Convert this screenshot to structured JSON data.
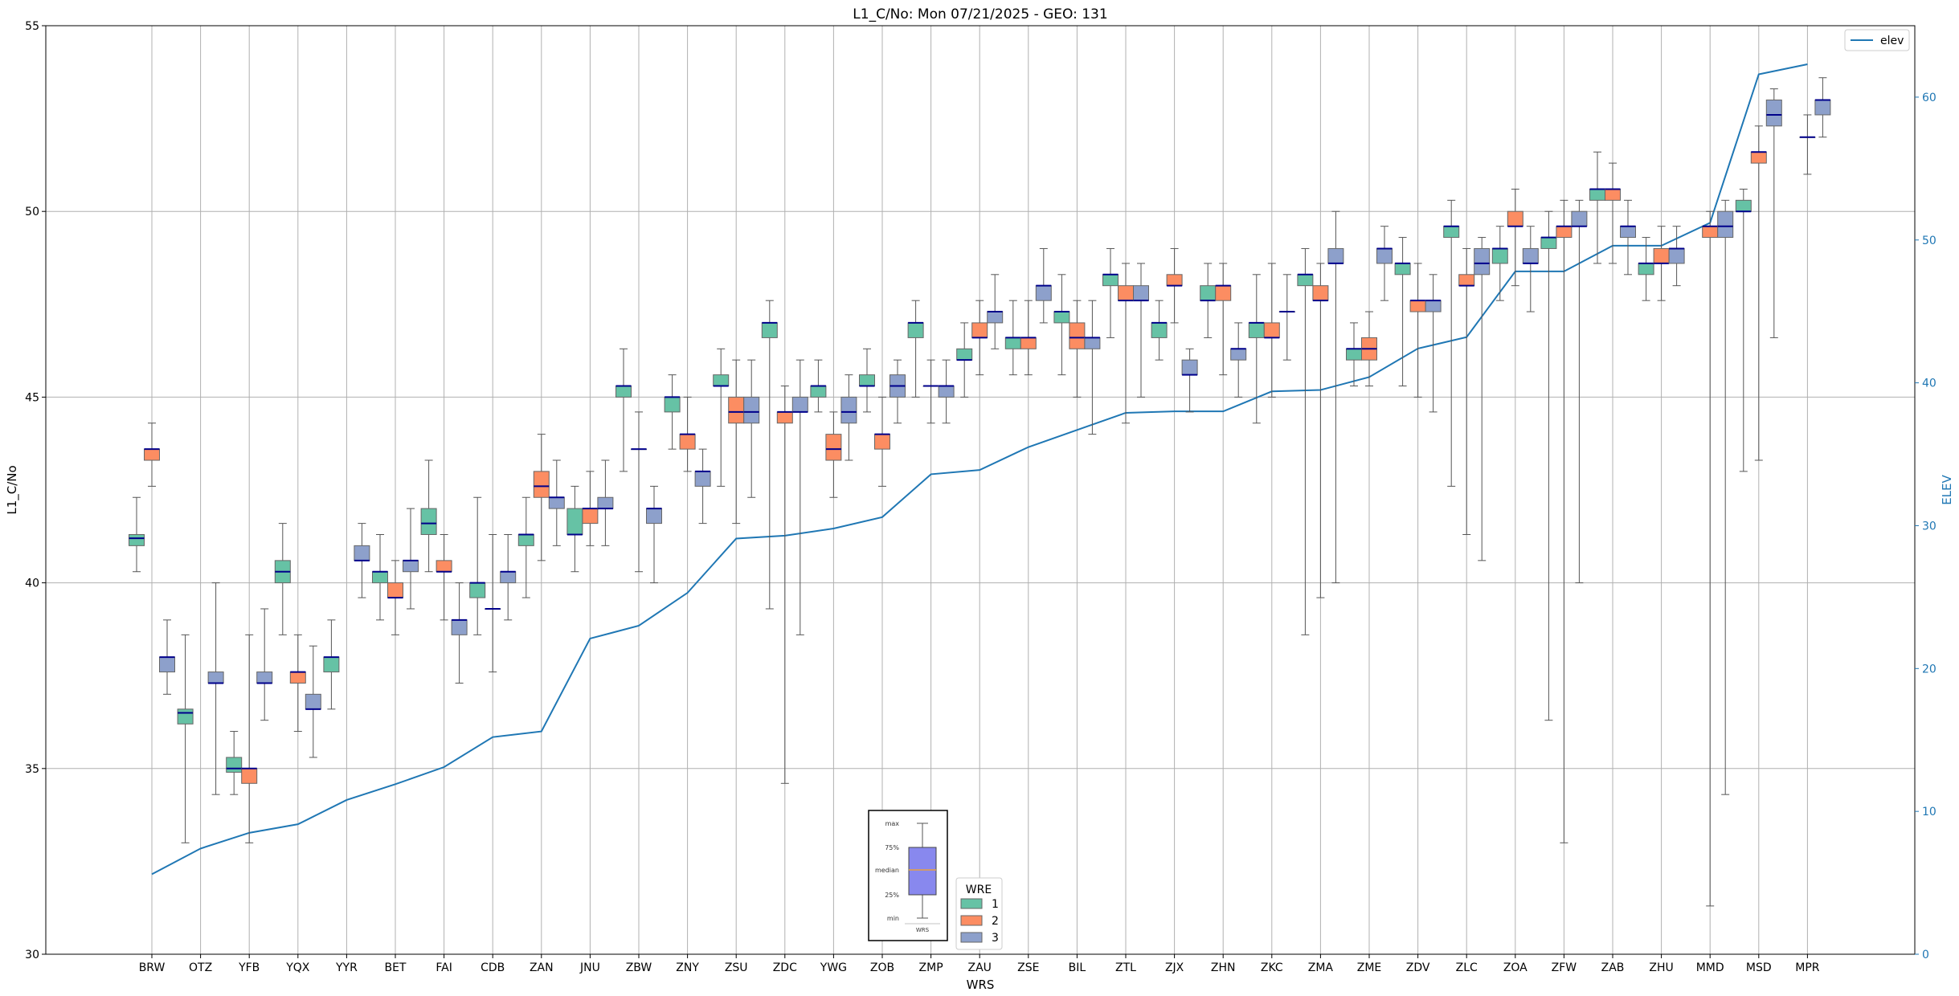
{
  "chart_data": {
    "type": "box",
    "title": "L1_C/No: Mon 07/21/2025 - GEO: 131",
    "xlabel": "WRS",
    "ylabel": "L1_C/No",
    "y2label": "ELEV",
    "ylim": [
      30,
      55
    ],
    "y2lim": [
      0,
      65
    ],
    "yticks": [
      30,
      35,
      40,
      45,
      50,
      55
    ],
    "y2ticks": [
      0,
      10,
      20,
      30,
      40,
      50,
      60
    ],
    "grid": true,
    "colors": {
      "wre1": "#66c2a5",
      "wre2": "#fc8d62",
      "wre3": "#8da0cb",
      "median": "#00008b",
      "elev": "#1f77b4",
      "grid": "#b0b0b0",
      "whisker": "#555555"
    },
    "legend_elev": {
      "label": "elev",
      "position": "top-right"
    },
    "legend_wre": {
      "title": "WRE",
      "entries": [
        "1",
        "2",
        "3"
      ],
      "position": "bottom-center"
    },
    "legend_box": {
      "labels": [
        "max",
        "75%",
        "median",
        "25%",
        "min"
      ],
      "xlabel": "WRS"
    },
    "categories": [
      "BRW",
      "OTZ",
      "YFB",
      "YQX",
      "YYR",
      "BET",
      "FAI",
      "CDB",
      "ZAN",
      "JNU",
      "ZBW",
      "ZNY",
      "ZSU",
      "ZDC",
      "YWG",
      "ZOB",
      "ZMP",
      "ZAU",
      "ZSE",
      "BIL",
      "ZTL",
      "ZJX",
      "ZHN",
      "ZKC",
      "ZMA",
      "ZME",
      "ZDV",
      "ZLC",
      "ZOA",
      "ZFW",
      "ZAB",
      "ZHU",
      "MMD",
      "MSD",
      "MPR"
    ],
    "elev": [
      5.6,
      7.4,
      8.5,
      9.1,
      10.8,
      11.9,
      13.1,
      15.2,
      15.6,
      22.1,
      23.0,
      25.3,
      29.1,
      29.3,
      29.8,
      30.6,
      33.6,
      33.9,
      35.5,
      36.7,
      37.9,
      38.0,
      38.0,
      39.4,
      39.5,
      40.4,
      42.4,
      43.2,
      47.8,
      47.8,
      49.6,
      49.6,
      51.2,
      61.6,
      62.3
    ],
    "boxes": [
      {
        "wrs": "BRW",
        "wre": 1,
        "min": 40.3,
        "q1": 41.0,
        "median": 41.2,
        "q3": 41.3,
        "max": 42.3
      },
      {
        "wrs": "BRW",
        "wre": 2,
        "min": 42.6,
        "q1": 43.3,
        "median": 43.6,
        "q3": 43.6,
        "max": 44.3
      },
      {
        "wrs": "BRW",
        "wre": 3,
        "min": 37.0,
        "q1": 37.6,
        "median": 38.0,
        "q3": 38.0,
        "max": 39.0
      },
      {
        "wrs": "OTZ",
        "wre": 1,
        "min": 33.0,
        "q1": 36.2,
        "median": 36.5,
        "q3": 36.6,
        "max": 38.6
      },
      {
        "wrs": "OTZ",
        "wre": 3,
        "min": 34.3,
        "q1": 37.3,
        "median": 37.3,
        "q3": 37.6,
        "max": 40.0
      },
      {
        "wrs": "YFB",
        "wre": 1,
        "min": 34.3,
        "q1": 34.9,
        "median": 35.0,
        "q3": 35.3,
        "max": 36.0
      },
      {
        "wrs": "YFB",
        "wre": 2,
        "min": 33.0,
        "q1": 34.6,
        "median": 35.0,
        "q3": 35.0,
        "max": 38.6
      },
      {
        "wrs": "YFB",
        "wre": 3,
        "min": 36.3,
        "q1": 37.3,
        "median": 37.3,
        "q3": 37.6,
        "max": 39.3
      },
      {
        "wrs": "YQX",
        "wre": 1,
        "min": 38.6,
        "q1": 40.0,
        "median": 40.3,
        "q3": 40.6,
        "max": 41.6
      },
      {
        "wrs": "YQX",
        "wre": 2,
        "min": 36.0,
        "q1": 37.3,
        "median": 37.6,
        "q3": 37.6,
        "max": 38.6
      },
      {
        "wrs": "YQX",
        "wre": 3,
        "min": 35.3,
        "q1": 36.6,
        "median": 36.6,
        "q3": 37.0,
        "max": 38.3
      },
      {
        "wrs": "YYR",
        "wre": 1,
        "min": 36.6,
        "q1": 37.6,
        "median": 38.0,
        "q3": 38.0,
        "max": 39.0
      },
      {
        "wrs": "YYR",
        "wre": 3,
        "min": 39.6,
        "q1": 40.6,
        "median": 40.6,
        "q3": 41.0,
        "max": 41.6
      },
      {
        "wrs": "BET",
        "wre": 1,
        "min": 39.0,
        "q1": 40.0,
        "median": 40.3,
        "q3": 40.3,
        "max": 41.3
      },
      {
        "wrs": "BET",
        "wre": 2,
        "min": 38.6,
        "q1": 39.6,
        "median": 39.6,
        "q3": 40.0,
        "max": 40.6
      },
      {
        "wrs": "BET",
        "wre": 3,
        "min": 39.3,
        "q1": 40.3,
        "median": 40.6,
        "q3": 40.6,
        "max": 42.0
      },
      {
        "wrs": "FAI",
        "wre": 1,
        "min": 40.3,
        "q1": 41.3,
        "median": 41.6,
        "q3": 42.0,
        "max": 43.3
      },
      {
        "wrs": "FAI",
        "wre": 2,
        "min": 39.0,
        "q1": 40.3,
        "median": 40.3,
        "q3": 40.6,
        "max": 41.3
      },
      {
        "wrs": "FAI",
        "wre": 3,
        "min": 37.3,
        "q1": 38.6,
        "median": 39.0,
        "q3": 39.0,
        "max": 40.0
      },
      {
        "wrs": "CDB",
        "wre": 1,
        "min": 38.6,
        "q1": 39.6,
        "median": 40.0,
        "q3": 40.0,
        "max": 42.3
      },
      {
        "wrs": "CDB",
        "wre": 2,
        "min": 37.6,
        "q1": 39.3,
        "median": 39.3,
        "q3": 39.3,
        "max": 41.3
      },
      {
        "wrs": "CDB",
        "wre": 3,
        "min": 39.0,
        "q1": 40.0,
        "median": 40.3,
        "q3": 40.3,
        "max": 41.3
      },
      {
        "wrs": "ZAN",
        "wre": 1,
        "min": 39.6,
        "q1": 41.0,
        "median": 41.3,
        "q3": 41.3,
        "max": 42.3
      },
      {
        "wrs": "ZAN",
        "wre": 2,
        "min": 40.6,
        "q1": 42.3,
        "median": 42.6,
        "q3": 43.0,
        "max": 44.0
      },
      {
        "wrs": "ZAN",
        "wre": 3,
        "min": 41.0,
        "q1": 42.0,
        "median": 42.3,
        "q3": 42.3,
        "max": 43.3
      },
      {
        "wrs": "JNU",
        "wre": 1,
        "min": 40.3,
        "q1": 41.3,
        "median": 41.3,
        "q3": 42.0,
        "max": 42.6
      },
      {
        "wrs": "JNU",
        "wre": 2,
        "min": 41.0,
        "q1": 41.6,
        "median": 42.0,
        "q3": 42.0,
        "max": 43.0
      },
      {
        "wrs": "JNU",
        "wre": 3,
        "min": 41.0,
        "q1": 42.0,
        "median": 42.0,
        "q3": 42.3,
        "max": 43.3
      },
      {
        "wrs": "ZBW",
        "wre": 1,
        "min": 43.0,
        "q1": 45.0,
        "median": 45.3,
        "q3": 45.3,
        "max": 46.3
      },
      {
        "wrs": "ZBW",
        "wre": 2,
        "min": 40.3,
        "q1": 43.6,
        "median": 43.6,
        "q3": 43.6,
        "max": 44.6
      },
      {
        "wrs": "ZBW",
        "wre": 3,
        "min": 40.0,
        "q1": 41.6,
        "median": 42.0,
        "q3": 42.0,
        "max": 42.6
      },
      {
        "wrs": "ZNY",
        "wre": 1,
        "min": 43.6,
        "q1": 44.6,
        "median": 45.0,
        "q3": 45.0,
        "max": 45.6
      },
      {
        "wrs": "ZNY",
        "wre": 2,
        "min": 43.0,
        "q1": 43.6,
        "median": 44.0,
        "q3": 44.0,
        "max": 45.0
      },
      {
        "wrs": "ZNY",
        "wre": 3,
        "min": 41.6,
        "q1": 42.6,
        "median": 43.0,
        "q3": 43.0,
        "max": 43.6
      },
      {
        "wrs": "ZSU",
        "wre": 1,
        "min": 42.6,
        "q1": 45.3,
        "median": 45.3,
        "q3": 45.6,
        "max": 46.3
      },
      {
        "wrs": "ZSU",
        "wre": 2,
        "min": 41.6,
        "q1": 44.3,
        "median": 44.6,
        "q3": 45.0,
        "max": 46.0
      },
      {
        "wrs": "ZSU",
        "wre": 3,
        "min": 42.3,
        "q1": 44.3,
        "median": 44.6,
        "q3": 45.0,
        "max": 46.0
      },
      {
        "wrs": "ZDC",
        "wre": 1,
        "min": 39.3,
        "q1": 46.6,
        "median": 47.0,
        "q3": 47.0,
        "max": 47.6
      },
      {
        "wrs": "ZDC",
        "wre": 2,
        "min": 34.6,
        "q1": 44.3,
        "median": 44.6,
        "q3": 44.6,
        "max": 45.3
      },
      {
        "wrs": "ZDC",
        "wre": 3,
        "min": 38.6,
        "q1": 44.6,
        "median": 44.6,
        "q3": 45.0,
        "max": 46.0
      },
      {
        "wrs": "YWG",
        "wre": 1,
        "min": 44.6,
        "q1": 45.0,
        "median": 45.3,
        "q3": 45.3,
        "max": 46.0
      },
      {
        "wrs": "YWG",
        "wre": 2,
        "min": 42.3,
        "q1": 43.3,
        "median": 43.6,
        "q3": 44.0,
        "max": 44.6
      },
      {
        "wrs": "YWG",
        "wre": 3,
        "min": 43.3,
        "q1": 44.3,
        "median": 44.6,
        "q3": 45.0,
        "max": 45.6
      },
      {
        "wrs": "ZOB",
        "wre": 1,
        "min": 44.6,
        "q1": 45.3,
        "median": 45.3,
        "q3": 45.6,
        "max": 46.3
      },
      {
        "wrs": "ZOB",
        "wre": 2,
        "min": 42.6,
        "q1": 43.6,
        "median": 44.0,
        "q3": 44.0,
        "max": 45.0
      },
      {
        "wrs": "ZOB",
        "wre": 3,
        "min": 44.3,
        "q1": 45.0,
        "median": 45.3,
        "q3": 45.6,
        "max": 46.0
      },
      {
        "wrs": "ZMP",
        "wre": 1,
        "min": 45.0,
        "q1": 46.6,
        "median": 47.0,
        "q3": 47.0,
        "max": 47.6
      },
      {
        "wrs": "ZMP",
        "wre": 2,
        "min": 44.3,
        "q1": 45.3,
        "median": 45.3,
        "q3": 45.3,
        "max": 46.0
      },
      {
        "wrs": "ZMP",
        "wre": 3,
        "min": 44.3,
        "q1": 45.0,
        "median": 45.3,
        "q3": 45.3,
        "max": 46.0
      },
      {
        "wrs": "ZAU",
        "wre": 1,
        "min": 45.0,
        "q1": 46.0,
        "median": 46.0,
        "q3": 46.3,
        "max": 47.0
      },
      {
        "wrs": "ZAU",
        "wre": 2,
        "min": 45.6,
        "q1": 46.6,
        "median": 46.6,
        "q3": 47.0,
        "max": 47.6
      },
      {
        "wrs": "ZAU",
        "wre": 3,
        "min": 46.3,
        "q1": 47.0,
        "median": 47.3,
        "q3": 47.3,
        "max": 48.3
      },
      {
        "wrs": "ZSE",
        "wre": 1,
        "min": 45.6,
        "q1": 46.3,
        "median": 46.6,
        "q3": 46.6,
        "max": 47.6
      },
      {
        "wrs": "ZSE",
        "wre": 2,
        "min": 45.6,
        "q1": 46.3,
        "median": 46.6,
        "q3": 46.6,
        "max": 47.6
      },
      {
        "wrs": "ZSE",
        "wre": 3,
        "min": 47.0,
        "q1": 47.6,
        "median": 48.0,
        "q3": 48.0,
        "max": 49.0
      },
      {
        "wrs": "BIL",
        "wre": 1,
        "min": 45.6,
        "q1": 47.0,
        "median": 47.3,
        "q3": 47.3,
        "max": 48.3
      },
      {
        "wrs": "BIL",
        "wre": 2,
        "min": 45.0,
        "q1": 46.3,
        "median": 46.6,
        "q3": 47.0,
        "max": 47.6
      },
      {
        "wrs": "BIL",
        "wre": 3,
        "min": 44.0,
        "q1": 46.3,
        "median": 46.6,
        "q3": 46.6,
        "max": 47.6
      },
      {
        "wrs": "ZTL",
        "wre": 1,
        "min": 46.6,
        "q1": 48.0,
        "median": 48.3,
        "q3": 48.3,
        "max": 49.0
      },
      {
        "wrs": "ZTL",
        "wre": 2,
        "min": 44.3,
        "q1": 47.6,
        "median": 47.6,
        "q3": 48.0,
        "max": 48.6
      },
      {
        "wrs": "ZTL",
        "wre": 3,
        "min": 45.0,
        "q1": 47.6,
        "median": 47.6,
        "q3": 48.0,
        "max": 48.6
      },
      {
        "wrs": "ZJX",
        "wre": 1,
        "min": 46.0,
        "q1": 46.6,
        "median": 47.0,
        "q3": 47.0,
        "max": 47.6
      },
      {
        "wrs": "ZJX",
        "wre": 2,
        "min": 47.0,
        "q1": 48.0,
        "median": 48.0,
        "q3": 48.3,
        "max": 49.0
      },
      {
        "wrs": "ZJX",
        "wre": 3,
        "min": 44.6,
        "q1": 45.6,
        "median": 45.6,
        "q3": 46.0,
        "max": 46.3
      },
      {
        "wrs": "ZHN",
        "wre": 1,
        "min": 46.6,
        "q1": 47.6,
        "median": 47.6,
        "q3": 48.0,
        "max": 48.6
      },
      {
        "wrs": "ZHN",
        "wre": 2,
        "min": 45.6,
        "q1": 47.6,
        "median": 48.0,
        "q3": 48.0,
        "max": 48.6
      },
      {
        "wrs": "ZHN",
        "wre": 3,
        "min": 45.0,
        "q1": 46.0,
        "median": 46.3,
        "q3": 46.3,
        "max": 47.0
      },
      {
        "wrs": "ZKC",
        "wre": 1,
        "min": 44.3,
        "q1": 46.6,
        "median": 47.0,
        "q3": 47.0,
        "max": 48.3
      },
      {
        "wrs": "ZKC",
        "wre": 2,
        "min": 45.0,
        "q1": 46.6,
        "median": 46.6,
        "q3": 47.0,
        "max": 48.6
      },
      {
        "wrs": "ZKC",
        "wre": 3,
        "min": 46.0,
        "q1": 47.3,
        "median": 47.3,
        "q3": 47.3,
        "max": 48.3
      },
      {
        "wrs": "ZMA",
        "wre": 1,
        "min": 38.6,
        "q1": 48.0,
        "median": 48.3,
        "q3": 48.3,
        "max": 49.0
      },
      {
        "wrs": "ZMA",
        "wre": 2,
        "min": 39.6,
        "q1": 47.6,
        "median": 47.6,
        "q3": 48.0,
        "max": 48.6
      },
      {
        "wrs": "ZMA",
        "wre": 3,
        "min": 40.0,
        "q1": 48.6,
        "median": 48.6,
        "q3": 49.0,
        "max": 50.0
      },
      {
        "wrs": "ZME",
        "wre": 1,
        "min": 45.3,
        "q1": 46.0,
        "median": 46.3,
        "q3": 46.3,
        "max": 47.0
      },
      {
        "wrs": "ZME",
        "wre": 2,
        "min": 45.3,
        "q1": 46.0,
        "median": 46.3,
        "q3": 46.6,
        "max": 47.3
      },
      {
        "wrs": "ZME",
        "wre": 3,
        "min": 47.6,
        "q1": 48.6,
        "median": 49.0,
        "q3": 49.0,
        "max": 49.6
      },
      {
        "wrs": "ZDV",
        "wre": 1,
        "min": 45.3,
        "q1": 48.3,
        "median": 48.6,
        "q3": 48.6,
        "max": 49.3
      },
      {
        "wrs": "ZDV",
        "wre": 2,
        "min": 45.0,
        "q1": 47.3,
        "median": 47.6,
        "q3": 47.6,
        "max": 48.6
      },
      {
        "wrs": "ZDV",
        "wre": 3,
        "min": 44.6,
        "q1": 47.3,
        "median": 47.6,
        "q3": 47.6,
        "max": 48.3
      },
      {
        "wrs": "ZLC",
        "wre": 1,
        "min": 42.6,
        "q1": 49.3,
        "median": 49.6,
        "q3": 49.6,
        "max": 50.3
      },
      {
        "wrs": "ZLC",
        "wre": 2,
        "min": 41.3,
        "q1": 48.0,
        "median": 48.0,
        "q3": 48.3,
        "max": 49.0
      },
      {
        "wrs": "ZLC",
        "wre": 3,
        "min": 40.6,
        "q1": 48.3,
        "median": 48.6,
        "q3": 49.0,
        "max": 49.3
      },
      {
        "wrs": "ZOA",
        "wre": 1,
        "min": 47.6,
        "q1": 48.6,
        "median": 49.0,
        "q3": 49.0,
        "max": 49.6
      },
      {
        "wrs": "ZOA",
        "wre": 2,
        "min": 48.0,
        "q1": 49.6,
        "median": 49.6,
        "q3": 50.0,
        "max": 50.6
      },
      {
        "wrs": "ZOA",
        "wre": 3,
        "min": 47.3,
        "q1": 48.6,
        "median": 48.6,
        "q3": 49.0,
        "max": 49.6
      },
      {
        "wrs": "ZFW",
        "wre": 1,
        "min": 36.3,
        "q1": 49.0,
        "median": 49.3,
        "q3": 49.3,
        "max": 50.0
      },
      {
        "wrs": "ZFW",
        "wre": 2,
        "min": 33.0,
        "q1": 49.3,
        "median": 49.6,
        "q3": 49.6,
        "max": 50.3
      },
      {
        "wrs": "ZFW",
        "wre": 3,
        "min": 40.0,
        "q1": 49.6,
        "median": 49.6,
        "q3": 50.0,
        "max": 50.3
      },
      {
        "wrs": "ZAB",
        "wre": 1,
        "min": 48.6,
        "q1": 50.3,
        "median": 50.6,
        "q3": 50.6,
        "max": 51.6
      },
      {
        "wrs": "ZAB",
        "wre": 2,
        "min": 48.6,
        "q1": 50.3,
        "median": 50.6,
        "q3": 50.6,
        "max": 51.3
      },
      {
        "wrs": "ZAB",
        "wre": 3,
        "min": 48.3,
        "q1": 49.3,
        "median": 49.6,
        "q3": 49.6,
        "max": 50.3
      },
      {
        "wrs": "ZHU",
        "wre": 1,
        "min": 47.6,
        "q1": 48.3,
        "median": 48.6,
        "q3": 48.6,
        "max": 49.3
      },
      {
        "wrs": "ZHU",
        "wre": 2,
        "min": 47.6,
        "q1": 48.6,
        "median": 48.6,
        "q3": 49.0,
        "max": 49.6
      },
      {
        "wrs": "ZHU",
        "wre": 3,
        "min": 48.0,
        "q1": 48.6,
        "median": 49.0,
        "q3": 49.0,
        "max": 49.6
      },
      {
        "wrs": "MMD",
        "wre": 2,
        "min": 31.3,
        "q1": 49.3,
        "median": 49.6,
        "q3": 49.6,
        "max": 50.0
      },
      {
        "wrs": "MMD",
        "wre": 3,
        "min": 34.3,
        "q1": 49.3,
        "median": 49.6,
        "q3": 50.0,
        "max": 50.3
      },
      {
        "wrs": "MSD",
        "wre": 1,
        "min": 43.0,
        "q1": 50.0,
        "median": 50.0,
        "q3": 50.3,
        "max": 50.6
      },
      {
        "wrs": "MSD",
        "wre": 2,
        "min": 43.3,
        "q1": 51.3,
        "median": 51.6,
        "q3": 51.6,
        "max": 52.3
      },
      {
        "wrs": "MSD",
        "wre": 3,
        "min": 46.6,
        "q1": 52.3,
        "median": 52.6,
        "q3": 53.0,
        "max": 53.3
      },
      {
        "wrs": "MPR",
        "wre": 2,
        "min": 51.0,
        "q1": 52.0,
        "median": 52.0,
        "q3": 52.0,
        "max": 52.6
      },
      {
        "wrs": "MPR",
        "wre": 3,
        "min": 52.0,
        "q1": 52.6,
        "median": 53.0,
        "q3": 53.0,
        "max": 53.6
      }
    ]
  }
}
